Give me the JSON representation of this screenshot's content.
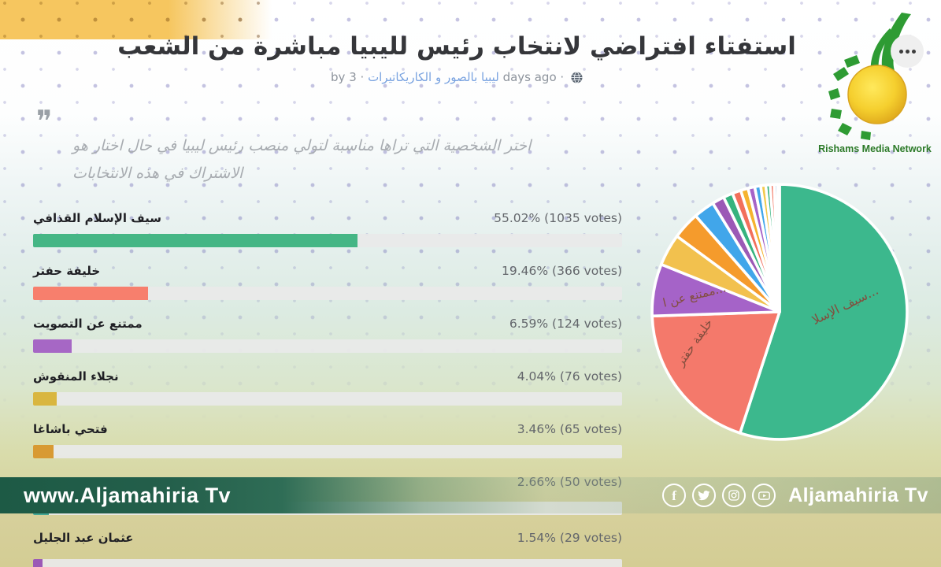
{
  "header": {
    "title": "استفتاء افتراضي لانتخاب رئيس لليبيا مباشرة من الشعب",
    "byline_prefix": "by 3 ·",
    "byline_link": "ليبيا بالصور و الكاريكاتيرات",
    "byline_suffix": "days ago ·"
  },
  "quote": {
    "mark": "❞",
    "question": "اختر الشخصية التي تراها مناسبة لتولي منصب رئيس ليبيا في حال اختار هو الاشتراك في هذه الانتخابات"
  },
  "poll": {
    "options": [
      {
        "label": "سيف الإسلام القذافي",
        "votes_text": "55.02% (1035 votes)",
        "percent": 55.02,
        "color": "#45b685"
      },
      {
        "label": "خليفة حفتر",
        "votes_text": "19.46% (366 votes)",
        "percent": 19.46,
        "color": "#f77f6d"
      },
      {
        "label": "ممتنع عن التصويت",
        "votes_text": "6.59% (124 votes)",
        "percent": 6.59,
        "color": "#a667c5"
      },
      {
        "label": "نجلاء المنقوش",
        "votes_text": "4.04% (76 votes)",
        "percent": 4.04,
        "color": "#d9b640"
      },
      {
        "label": "فتحي باشاغا",
        "votes_text": "3.46% (65 votes)",
        "percent": 3.46,
        "color": "#d89a33"
      },
      {
        "label": "",
        "votes_text": "2.66% (50 votes)",
        "percent": 2.66,
        "color": "#43a795"
      },
      {
        "label": "عثمان عبد الجليل",
        "votes_text": "1.54% (29 votes)",
        "percent": 1.54,
        "color": "#9b59b6"
      }
    ]
  },
  "chart_data": [
    {
      "type": "pie",
      "title": "",
      "legend_position": "none",
      "slices": [
        {
          "label": "سيف الإسلام القذافي",
          "value": 55.02,
          "color": "#3cb88d"
        },
        {
          "label": "خليفة حفتر",
          "value": 19.46,
          "color": "#f4796b"
        },
        {
          "label": "ممتنع عن التصويت",
          "value": 6.59,
          "color": "#a563c8"
        },
        {
          "label": "نجلاء المنقوش",
          "value": 4.04,
          "color": "#f2c14e"
        },
        {
          "label": "فتحي باشاغا",
          "value": 3.46,
          "color": "#f59b2c"
        },
        {
          "label": "",
          "value": 2.66,
          "color": "#41a6ea"
        },
        {
          "label": "عثمان عبد الجليل",
          "value": 1.54,
          "color": "#9b59b6"
        },
        {
          "label": "",
          "value": 1.2,
          "color": "#36b37e"
        },
        {
          "label": "",
          "value": 1.1,
          "color": "#f2705b"
        },
        {
          "label": "",
          "value": 0.95,
          "color": "#f5b32e"
        },
        {
          "label": "",
          "value": 0.85,
          "color": "#a563c8"
        },
        {
          "label": "",
          "value": 0.75,
          "color": "#41a6ea"
        },
        {
          "label": "",
          "value": 0.65,
          "color": "#f2c94c"
        },
        {
          "label": "",
          "value": 0.55,
          "color": "#36b37e"
        },
        {
          "label": "",
          "value": 0.5,
          "color": "#f2705b"
        },
        {
          "label": "",
          "value": 0.4,
          "color": "#8fb3d9"
        },
        {
          "label": "",
          "value": 0.28,
          "color": "#b8c4cc"
        }
      ],
      "visible_slice_labels": {
        "green": "...سيف الإسلا",
        "salmon": "خليفة حفتر",
        "purple": "...ممتنع عن ا"
      }
    },
    {
      "type": "bar",
      "categories": [
        "سيف الإسلام القذافي",
        "خليفة حفتر",
        "ممتنع عن التصويت",
        "نجلاء المنقوش",
        "فتحي باشاغا",
        "",
        "عثمان عبد الجليل"
      ],
      "values": [
        55.02,
        19.46,
        6.59,
        4.04,
        3.46,
        2.66,
        1.54
      ],
      "title": "",
      "xlabel": "",
      "ylabel": "",
      "unit": "percent",
      "xlim": [
        0,
        100
      ]
    }
  ],
  "watermark": {
    "url": "www.Aljamahiria Tv",
    "brand": "Aljamahiria Tv",
    "icons": [
      "facebook",
      "twitter",
      "instagram",
      "youtube"
    ]
  },
  "logo": {
    "caption": "Rishams Media Network"
  }
}
